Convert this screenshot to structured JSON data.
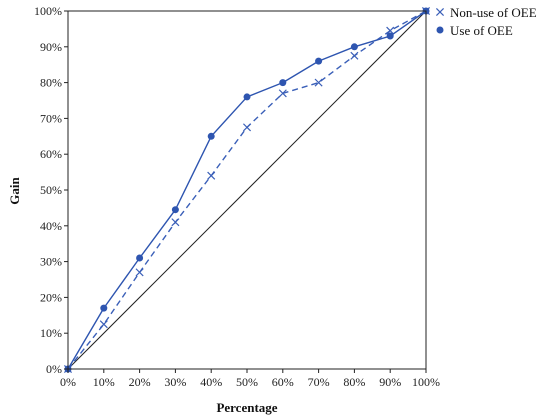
{
  "chart_data": {
    "type": "line",
    "title": "",
    "xlabel": "Percentage",
    "ylabel": "Gain",
    "xlim": [
      0,
      100
    ],
    "ylim": [
      0,
      100
    ],
    "tick_values": [
      0,
      10,
      20,
      30,
      40,
      50,
      60,
      70,
      80,
      90,
      100
    ],
    "x_tick_labels": [
      "0%",
      "10%",
      "20%",
      "30%",
      "40%",
      "50%",
      "60%",
      "70%",
      "80%",
      "90%",
      "100%"
    ],
    "y_tick_labels": [
      "0%",
      "10%",
      "20%",
      "30%",
      "40%",
      "50%",
      "60%",
      "70%",
      "80%",
      "90%",
      "100%"
    ],
    "grid": false,
    "legend_position": "top-right",
    "reference_line": {
      "x": [
        0,
        100
      ],
      "y": [
        0,
        100
      ],
      "color": "#222222"
    },
    "x": [
      0,
      10,
      20,
      30,
      40,
      50,
      60,
      70,
      80,
      90,
      100
    ],
    "series": [
      {
        "name": "Non-use of OEE",
        "values": [
          0,
          12.5,
          27,
          41,
          54,
          67.5,
          77,
          80,
          87.5,
          94.5,
          100
        ],
        "marker": "x",
        "line_style": "dashed",
        "color": "#3a5fb8"
      },
      {
        "name": "Use of OEE",
        "values": [
          0,
          17,
          31,
          44.5,
          65,
          76,
          80,
          86,
          90,
          93,
          100
        ],
        "marker": "circle",
        "line_style": "solid",
        "color": "#2e55b0"
      }
    ]
  }
}
